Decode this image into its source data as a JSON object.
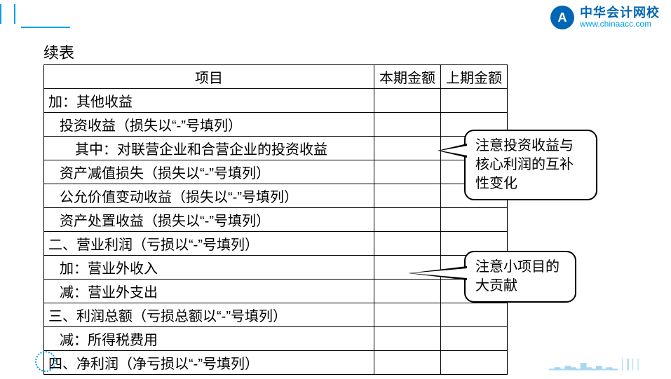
{
  "logo": {
    "cn": "中华会计网校",
    "en": "www.chinaacc.com"
  },
  "title": "续表",
  "headers": {
    "item": "项目",
    "cur": "本期金额",
    "prev": "上期金额"
  },
  "rows": [
    {
      "text": "加：其他收益",
      "indent": 0
    },
    {
      "text": "投资收益（损失以“-”号填列）",
      "indent": 1
    },
    {
      "text": "其中：对联营企业和合营企业的投资收益",
      "indent": 2
    },
    {
      "text": "资产减值损失（损失以“-”号填列）",
      "indent": 1
    },
    {
      "text": "公允价值变动收益（损失以“-”号填列）",
      "indent": 1
    },
    {
      "text": "资产处置收益（损失以“-”号填列）",
      "indent": 1
    },
    {
      "text": "二、营业利润（亏损以“-”号填列）",
      "indent": 0
    },
    {
      "text": "加：营业外收入",
      "indent": 1
    },
    {
      "text": "减：营业外支出",
      "indent": 1
    },
    {
      "text": "三、利润总额（亏损总额以“-”号填列）",
      "indent": 0
    },
    {
      "text": "减：所得税费用",
      "indent": 1
    },
    {
      "text": "四、净利润（净亏损以“-”号填列）",
      "indent": 0
    }
  ],
  "callouts": {
    "c1": "注意投资收益与核心利润的互补性变化",
    "c2": "注意小项目的大贡献"
  },
  "colors": {
    "brand": "#0066b3",
    "accent": "#00a0e9"
  }
}
